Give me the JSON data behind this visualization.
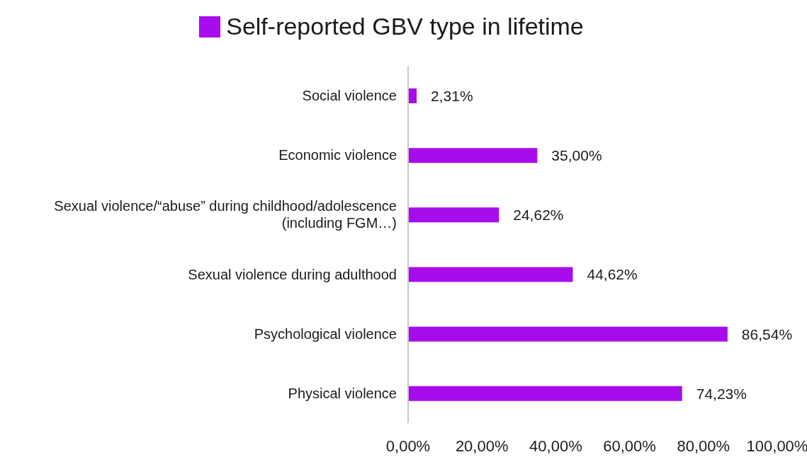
{
  "chart_data": {
    "type": "bar",
    "orientation": "horizontal",
    "categories": [
      "Social violence",
      "Economic violence",
      "Sexual violence/“abuse” during childhood/adolescence (including FGM…)",
      "Sexual violence during adulthood",
      "Psychological violence",
      "Physical violence"
    ],
    "series": [
      {
        "name": "Self-reported GBV type in lifetime",
        "color": "#a80ced",
        "values": [
          2.31,
          35.0,
          24.62,
          44.62,
          86.54,
          74.23
        ],
        "value_labels": [
          "2,31%",
          "35,00%",
          "24,62%",
          "44,62%",
          "86,54%",
          "74,23%"
        ]
      }
    ],
    "xlim": [
      0,
      100
    ],
    "xticks": [
      {
        "value": 0,
        "label": "0,00%"
      },
      {
        "value": 20,
        "label": "20,00%"
      },
      {
        "value": 40,
        "label": "40,00%"
      },
      {
        "value": 60,
        "label": "60,00%"
      },
      {
        "value": 80,
        "label": "80,00%"
      },
      {
        "value": 100,
        "label": "100,00%"
      }
    ],
    "grid": false,
    "legend": "top"
  }
}
